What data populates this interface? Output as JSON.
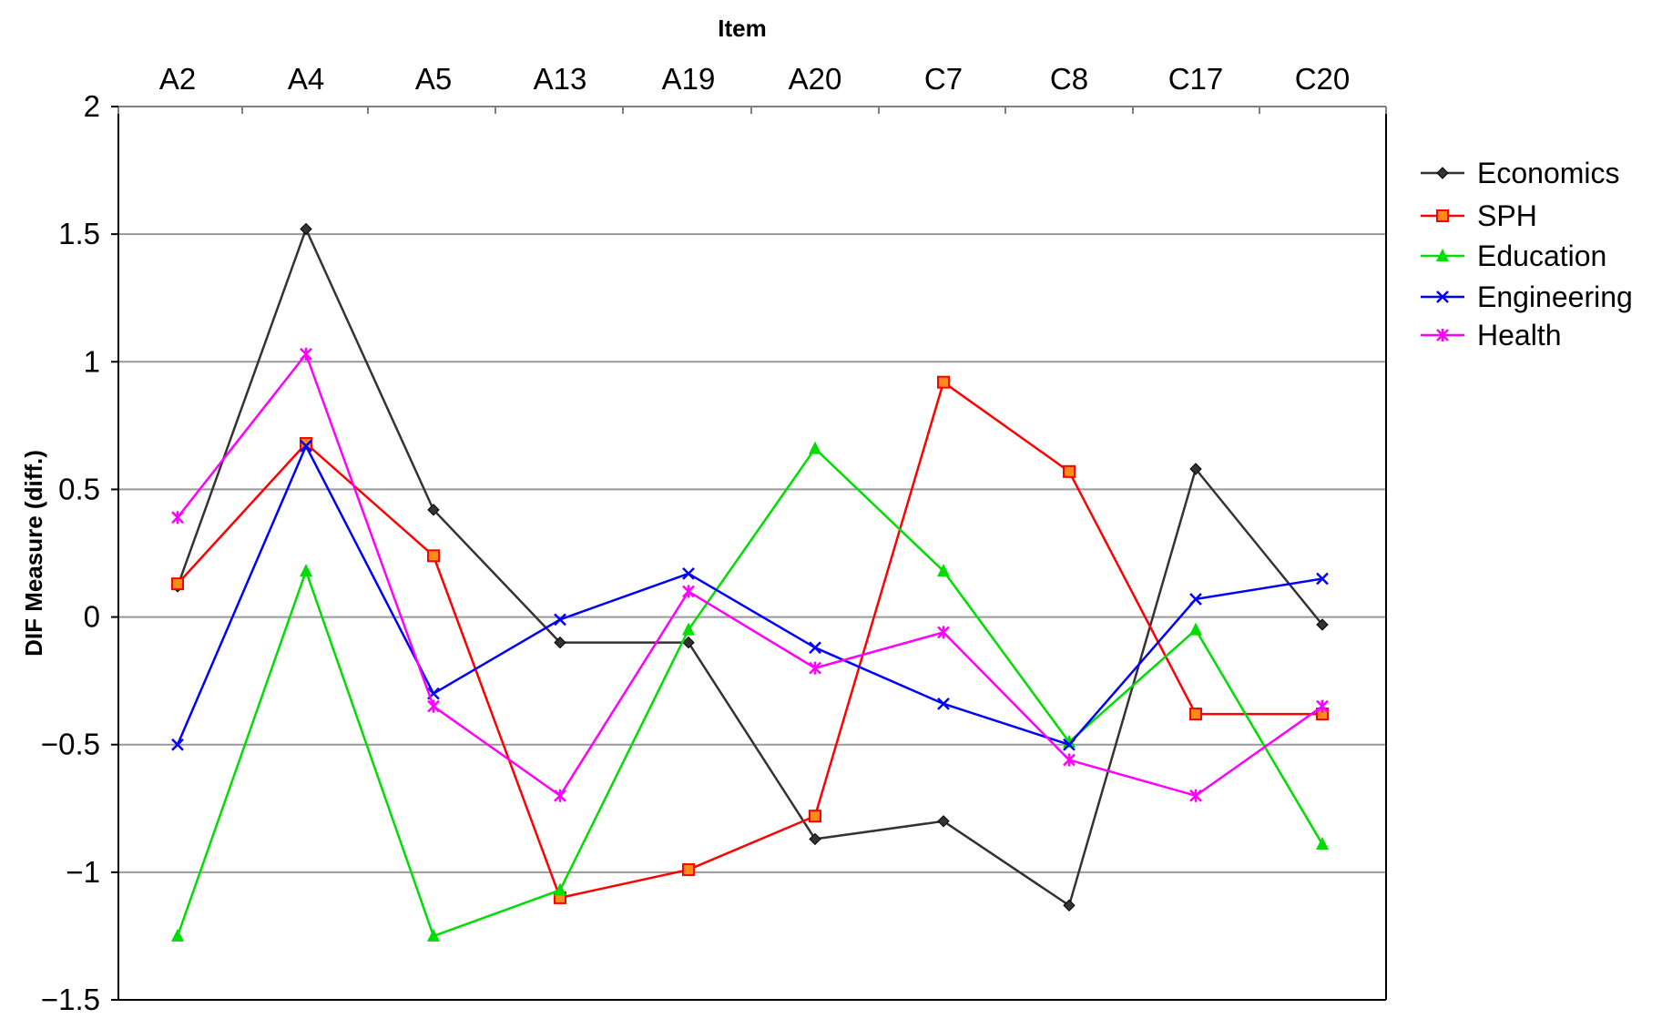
{
  "chart_data": {
    "type": "line",
    "xlabel": "Item",
    "ylabel": "DIF Measure (diff.)",
    "categories": [
      "A2",
      "A4",
      "A5",
      "A13",
      "A19",
      "A20",
      "C7",
      "C8",
      "C17",
      "C20"
    ],
    "ylim": [
      -1.5,
      2
    ],
    "yticks": [
      2,
      1.5,
      1,
      0.5,
      0,
      -0.5,
      -1,
      -1.5
    ],
    "ytick_labels": [
      "2",
      "1.5",
      "1",
      "0.5",
      "0",
      "−0.5",
      "−1",
      "−1.5"
    ],
    "grid": true,
    "legend_position": "right",
    "series": [
      {
        "name": "Economics",
        "color": "#333333",
        "marker": "diamond",
        "values": [
          0.12,
          1.52,
          0.42,
          -0.1,
          -0.1,
          -0.87,
          -0.8,
          -1.13,
          0.58,
          -0.03
        ]
      },
      {
        "name": "SPH",
        "color": "#ff0000",
        "marker": "square",
        "values": [
          0.13,
          0.68,
          0.24,
          -1.1,
          -0.99,
          -0.78,
          0.92,
          0.57,
          -0.38,
          -0.38
        ]
      },
      {
        "name": "Education",
        "color": "#00dd00",
        "marker": "triangle",
        "values": [
          -1.25,
          0.18,
          -1.25,
          -1.07,
          -0.05,
          0.66,
          0.18,
          -0.49,
          -0.05,
          -0.89
        ]
      },
      {
        "name": "Engineering",
        "color": "#0000ff",
        "marker": "x",
        "values": [
          -0.5,
          0.67,
          -0.3,
          -0.01,
          0.17,
          -0.12,
          -0.34,
          -0.5,
          0.07,
          0.15
        ]
      },
      {
        "name": "Health",
        "color": "#ff00ff",
        "marker": "star",
        "values": [
          0.39,
          1.03,
          -0.35,
          -0.7,
          0.1,
          -0.2,
          -0.06,
          -0.56,
          -0.7,
          -0.35
        ]
      }
    ]
  }
}
